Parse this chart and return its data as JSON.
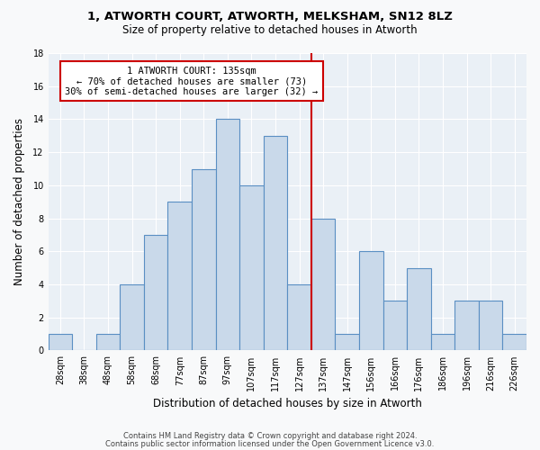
{
  "title1": "1, ATWORTH COURT, ATWORTH, MELKSHAM, SN12 8LZ",
  "title2": "Size of property relative to detached houses in Atworth",
  "xlabel": "Distribution of detached houses by size in Atworth",
  "ylabel": "Number of detached properties",
  "bar_labels": [
    "28sqm",
    "38sqm",
    "48sqm",
    "58sqm",
    "68sqm",
    "77sqm",
    "87sqm",
    "97sqm",
    "107sqm",
    "117sqm",
    "127sqm",
    "137sqm",
    "147sqm",
    "156sqm",
    "166sqm",
    "176sqm",
    "186sqm",
    "196sqm",
    "216sqm",
    "226sqm"
  ],
  "bar_heights": [
    1,
    0,
    1,
    4,
    7,
    9,
    11,
    14,
    10,
    13,
    4,
    8,
    1,
    6,
    3,
    5,
    1,
    3,
    3,
    1
  ],
  "bar_color": "#c9d9ea",
  "bar_edge_color": "#5a8fc3",
  "red_line_index": 11,
  "annotation_line1": "1 ATWORTH COURT: 135sqm",
  "annotation_line2": "← 70% of detached houses are smaller (73)",
  "annotation_line3": "30% of semi-detached houses are larger (32) →",
  "annotation_box_color": "#ffffff",
  "annotation_border_color": "#cc0000",
  "ylim": [
    0,
    18
  ],
  "yticks": [
    0,
    2,
    4,
    6,
    8,
    10,
    12,
    14,
    16,
    18
  ],
  "footer1": "Contains HM Land Registry data © Crown copyright and database right 2024.",
  "footer2": "Contains public sector information licensed under the Open Government Licence v3.0.",
  "bg_color": "#eaf0f6",
  "fig_color": "#f8f9fa"
}
